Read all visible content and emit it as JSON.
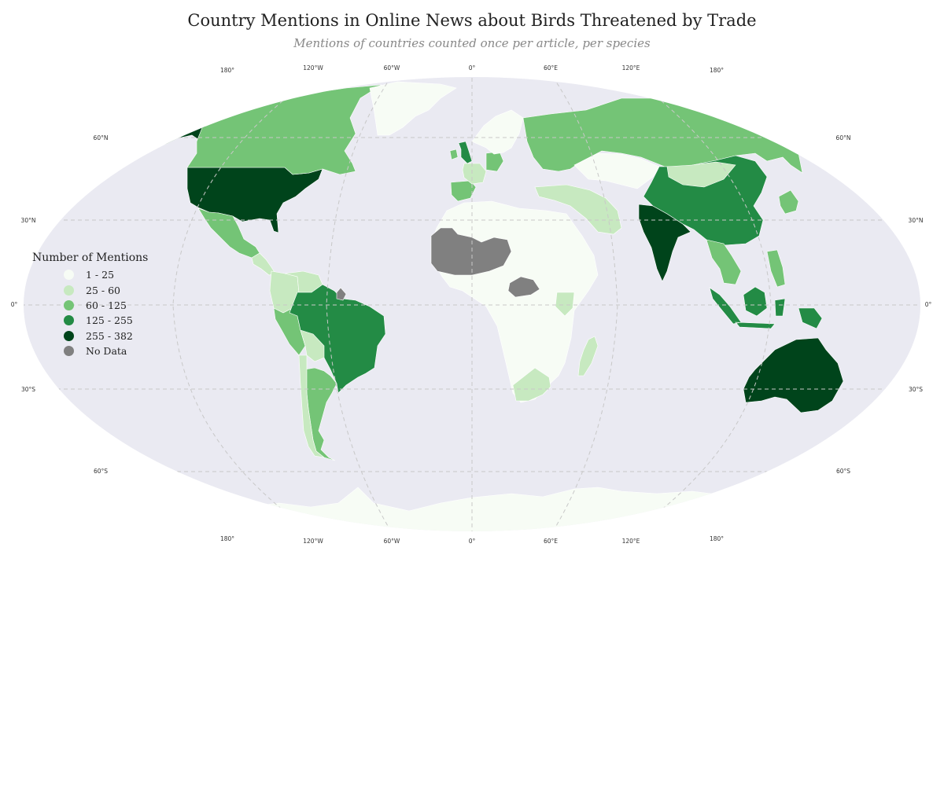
{
  "title": "Country Mentions in Online News about Birds Threatened by Trade",
  "subtitle": "Mentions of countries counted once per article, per species",
  "legend": {
    "title": "Number of Mentions",
    "items": [
      {
        "label": "1 - 25",
        "color": "#f7fcf5"
      },
      {
        "label": "25 - 60",
        "color": "#c7e9c0"
      },
      {
        "label": "60 - 125",
        "color": "#74c476"
      },
      {
        "label": "125 - 255",
        "color": "#238b45"
      },
      {
        "label": "255 - 382",
        "color": "#00441b"
      },
      {
        "label": "No Data",
        "color": "#808080"
      }
    ]
  },
  "colors": {
    "ocean": "#eaeaf2",
    "gridline": "#c8c8c8"
  },
  "graticule": {
    "lon_labels": [
      "180°",
      "120°W",
      "60°W",
      "0°",
      "60°E",
      "120°E",
      "180°"
    ],
    "lat_labels": [
      "60°N",
      "30°N",
      "0°",
      "30°S",
      "60°S"
    ]
  },
  "map_data": {
    "type": "choropleth",
    "projection": "Robinson",
    "bins": [
      "1 - 25",
      "25 - 60",
      "60 - 125",
      "125 - 255",
      "255 - 382",
      "No Data"
    ],
    "regions": [
      {
        "name": "United States",
        "bin": "255 - 382"
      },
      {
        "name": "Alaska",
        "bin": "255 - 382"
      },
      {
        "name": "Canada",
        "bin": "60 - 125"
      },
      {
        "name": "Greenland",
        "bin": "1 - 25"
      },
      {
        "name": "Mexico",
        "bin": "60 - 125"
      },
      {
        "name": "Central America",
        "bin": "25 - 60"
      },
      {
        "name": "Colombia",
        "bin": "25 - 60"
      },
      {
        "name": "Venezuela",
        "bin": "25 - 60"
      },
      {
        "name": "Peru",
        "bin": "60 - 125"
      },
      {
        "name": "Brazil",
        "bin": "125 - 255"
      },
      {
        "name": "Bolivia",
        "bin": "25 - 60"
      },
      {
        "name": "Argentina",
        "bin": "60 - 125"
      },
      {
        "name": "Chile",
        "bin": "25 - 60"
      },
      {
        "name": "French Guiana",
        "bin": "No Data"
      },
      {
        "name": "United Kingdom",
        "bin": "125 - 255"
      },
      {
        "name": "Ireland",
        "bin": "60 - 125"
      },
      {
        "name": "Iberia",
        "bin": "60 - 125"
      },
      {
        "name": "France",
        "bin": "25 - 60"
      },
      {
        "name": "Germany",
        "bin": "60 - 125"
      },
      {
        "name": "Scandinavia",
        "bin": "1 - 25"
      },
      {
        "name": "Russia",
        "bin": "60 - 125"
      },
      {
        "name": "Kazakhstan",
        "bin": "1 - 25"
      },
      {
        "name": "Middle East",
        "bin": "25 - 60"
      },
      {
        "name": "India",
        "bin": "255 - 382"
      },
      {
        "name": "China",
        "bin": "125 - 255"
      },
      {
        "name": "Mongolia",
        "bin": "25 - 60"
      },
      {
        "name": "Southeast Asia",
        "bin": "60 - 125"
      },
      {
        "name": "Indonesia",
        "bin": "125 - 255"
      },
      {
        "name": "Philippines",
        "bin": "60 - 125"
      },
      {
        "name": "Japan",
        "bin": "60 - 125"
      },
      {
        "name": "Australia",
        "bin": "255 - 382"
      },
      {
        "name": "New Zealand",
        "bin": "125 - 255"
      },
      {
        "name": "Africa (most)",
        "bin": "1 - 25"
      },
      {
        "name": "Sahel",
        "bin": "No Data"
      },
      {
        "name": "South Sudan",
        "bin": "No Data"
      },
      {
        "name": "Kenya",
        "bin": "25 - 60"
      },
      {
        "name": "South Africa",
        "bin": "25 - 60"
      },
      {
        "name": "Madagascar",
        "bin": "25 - 60"
      },
      {
        "name": "Antarctica",
        "bin": "1 - 25"
      }
    ]
  }
}
